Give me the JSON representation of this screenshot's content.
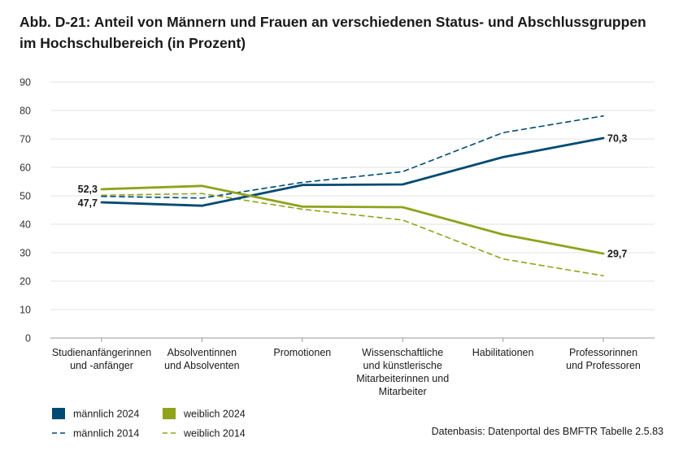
{
  "title_lines": [
    "Abb. D-21: Anteil von Männern und Frauen an verschiedenen Status- und Abschlussgruppen",
    "im Hochschulbereich (in Prozent)"
  ],
  "source": "Datenbasis: Datenportal des BMFTR Tabelle 2.5.83",
  "chart_data": {
    "type": "line",
    "title": "Abb. D-21: Anteil von Männern und Frauen an verschiedenen Status- und Abschlussgruppen im Hochschulbereich (in Prozent)",
    "xlabel": "",
    "ylabel": "",
    "ylim": [
      0,
      90
    ],
    "yticks": [
      0,
      10,
      20,
      30,
      40,
      50,
      60,
      70,
      80,
      90
    ],
    "grid": true,
    "legend_position": "bottom-left",
    "categories": [
      [
        "Studienanfängerinnen",
        "und -anfänger"
      ],
      [
        "Absolventinnen",
        "und Absolventen"
      ],
      [
        "Promotionen"
      ],
      [
        "Wissenschaftliche",
        "und künstlerische",
        "Mitarbeiterinnen und",
        "Mitarbeiter"
      ],
      [
        "Habilitationen"
      ],
      [
        "Professorinnen",
        "und Professoren"
      ]
    ],
    "series": [
      {
        "name": "männlich 2024",
        "color": "#004a73",
        "style": "solid",
        "values": [
          47.7,
          46.5,
          53.8,
          54.0,
          63.6,
          70.3
        ],
        "labels": {
          "0": "47,7",
          "5": "70,3"
        }
      },
      {
        "name": "weiblich 2024",
        "color": "#8fa31b",
        "style": "solid",
        "values": [
          52.3,
          53.5,
          46.2,
          46.0,
          36.4,
          29.7
        ],
        "labels": {
          "0": "52,3",
          "5": "29,7"
        }
      },
      {
        "name": "männlich 2014",
        "color": "#004a73",
        "style": "dashed",
        "values": [
          49.8,
          49.2,
          54.7,
          58.5,
          72.2,
          78.1
        ]
      },
      {
        "name": "weiblich 2014",
        "color": "#8fa31b",
        "style": "dashed",
        "values": [
          50.2,
          50.8,
          45.3,
          41.5,
          27.8,
          21.9
        ]
      }
    ]
  }
}
